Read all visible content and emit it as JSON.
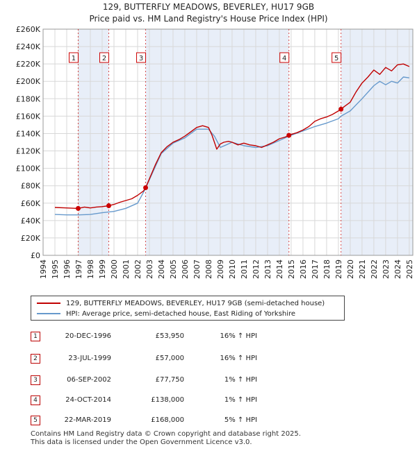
{
  "title_line1": "129, BUTTERFLY MEADOWS, BEVERLEY, HU17 9GB",
  "title_line2": "Price paid vs. HM Land Registry's House Price Index (HPI)",
  "legend": {
    "property": "129, BUTTERFLY MEADOWS, BEVERLEY, HU17 9GB (semi-detached house)",
    "hpi": "HPI: Average price, semi-detached house, East Riding of Yorkshire"
  },
  "colors": {
    "property": "#c00000",
    "hpi": "#6699cc",
    "shade": "#e8eef8"
  },
  "sales": [
    {
      "num": "1",
      "date": "20-DEC-1996",
      "price": "£53,950",
      "hpi": "16% ↑ HPI"
    },
    {
      "num": "2",
      "date": "23-JUL-1999",
      "price": "£57,000",
      "hpi": "16% ↑ HPI"
    },
    {
      "num": "3",
      "date": "06-SEP-2002",
      "price": "£77,750",
      "hpi": "1% ↑ HPI"
    },
    {
      "num": "4",
      "date": "24-OCT-2014",
      "price": "£138,000",
      "hpi": "1% ↑ HPI"
    },
    {
      "num": "5",
      "date": "22-MAR-2019",
      "price": "£168,000",
      "hpi": "5% ↑ HPI"
    }
  ],
  "footer": {
    "line1": "Contains HM Land Registry data © Crown copyright and database right 2025.",
    "line2": "This data is licensed under the Open Government Licence v3.0."
  },
  "chart_data": {
    "type": "line",
    "xlim": [
      1994,
      2025.3
    ],
    "ylim": [
      0,
      260000
    ],
    "x_ticks": [
      1994,
      1995,
      1996,
      1997,
      1998,
      1999,
      2000,
      2001,
      2002,
      2003,
      2004,
      2005,
      2006,
      2007,
      2008,
      2009,
      2010,
      2011,
      2012,
      2013,
      2014,
      2015,
      2016,
      2017,
      2018,
      2019,
      2020,
      2021,
      2022,
      2023,
      2024,
      2025
    ],
    "x_tick_labels": [
      "1994",
      "1995",
      "1996",
      "1997",
      "1998",
      "1999",
      "2000",
      "2001",
      "2002",
      "2003",
      "2004",
      "2005",
      "2006",
      "2007",
      "2008",
      "2009",
      "2010",
      "2011",
      "2012",
      "2013",
      "2014",
      "2015",
      "2016",
      "2017",
      "2018",
      "2019",
      "2020",
      "2021",
      "2022",
      "2023",
      "2024",
      "2025"
    ],
    "y_ticks": [
      0,
      20000,
      40000,
      60000,
      80000,
      100000,
      120000,
      140000,
      160000,
      180000,
      200000,
      220000,
      240000,
      260000
    ],
    "y_tick_labels": [
      "£0",
      "£20K",
      "£40K",
      "£60K",
      "£80K",
      "£100K",
      "£120K",
      "£140K",
      "£160K",
      "£180K",
      "£200K",
      "£220K",
      "£240K",
      "£260K"
    ],
    "series": [
      {
        "name": "129, BUTTERFLY MEADOWS, BEVERLEY, HU17 9GB (semi-detached house)",
        "x": [
          1995,
          1996,
          1996.97,
          1997.5,
          1998,
          1998.5,
          1999,
          1999.56,
          2000,
          2000.5,
          2001,
          2001.5,
          2002,
          2002.5,
          2002.68,
          2003,
          2003.5,
          2004,
          2004.5,
          2005,
          2005.5,
          2006,
          2006.5,
          2007,
          2007.5,
          2008,
          2008.3,
          2008.7,
          2009,
          2009.3,
          2009.7,
          2010,
          2010.5,
          2011,
          2011.5,
          2012,
          2012.5,
          2013,
          2013.5,
          2014,
          2014.5,
          2014.81,
          2015,
          2015.5,
          2016,
          2016.5,
          2017,
          2017.5,
          2018,
          2018.5,
          2019,
          2019.22,
          2019.5,
          2020,
          2020.5,
          2021,
          2021.5,
          2022,
          2022.5,
          2023,
          2023.5,
          2024,
          2024.5,
          2025
        ],
        "y": [
          55000,
          54500,
          53950,
          55500,
          54500,
          55500,
          56000,
          57000,
          58500,
          61000,
          63000,
          65000,
          69000,
          74000,
          77750,
          88000,
          104000,
          118000,
          125000,
          130000,
          133000,
          137000,
          142000,
          147000,
          149000,
          147000,
          138000,
          122000,
          128000,
          130000,
          131000,
          130000,
          127000,
          129000,
          127000,
          126000,
          124000,
          127000,
          130000,
          134000,
          136000,
          138000,
          139000,
          141000,
          144000,
          148000,
          154000,
          157000,
          159000,
          162000,
          166000,
          168000,
          171000,
          176000,
          188000,
          198000,
          205000,
          213000,
          208000,
          216000,
          212000,
          219000,
          220000,
          217000
        ]
      },
      {
        "name": "HPI: Average price, semi-detached house, East Riding of Yorkshire",
        "x": [
          1995,
          1996,
          1997,
          1998,
          1999,
          2000,
          2001,
          2002,
          2002.68,
          2003,
          2004,
          2005,
          2006,
          2007,
          2008,
          2008.5,
          2009,
          2009.5,
          2010,
          2011,
          2012,
          2013,
          2014,
          2014.81,
          2015,
          2016,
          2017,
          2018,
          2019,
          2019.22,
          2020,
          2021,
          2022,
          2022.5,
          2023,
          2023.5,
          2024,
          2024.5,
          2025
        ],
        "y": [
          47000,
          46500,
          46500,
          47000,
          49000,
          50500,
          54000,
          60000,
          77000,
          87000,
          117000,
          129000,
          135000,
          145000,
          145000,
          137000,
          124000,
          127000,
          130000,
          126000,
          124000,
          126000,
          132000,
          137000,
          138000,
          143000,
          148000,
          152000,
          157000,
          160000,
          166000,
          180000,
          195000,
          200000,
          196000,
          200000,
          198000,
          205000,
          204000
        ]
      }
    ],
    "sale_markers": [
      {
        "label": "1",
        "x": 1996.97,
        "y": 53950
      },
      {
        "label": "2",
        "x": 1999.56,
        "y": 57000
      },
      {
        "label": "3",
        "x": 2002.68,
        "y": 77750
      },
      {
        "label": "4",
        "x": 2014.81,
        "y": 138000
      },
      {
        "label": "5",
        "x": 2019.22,
        "y": 168000
      }
    ]
  }
}
